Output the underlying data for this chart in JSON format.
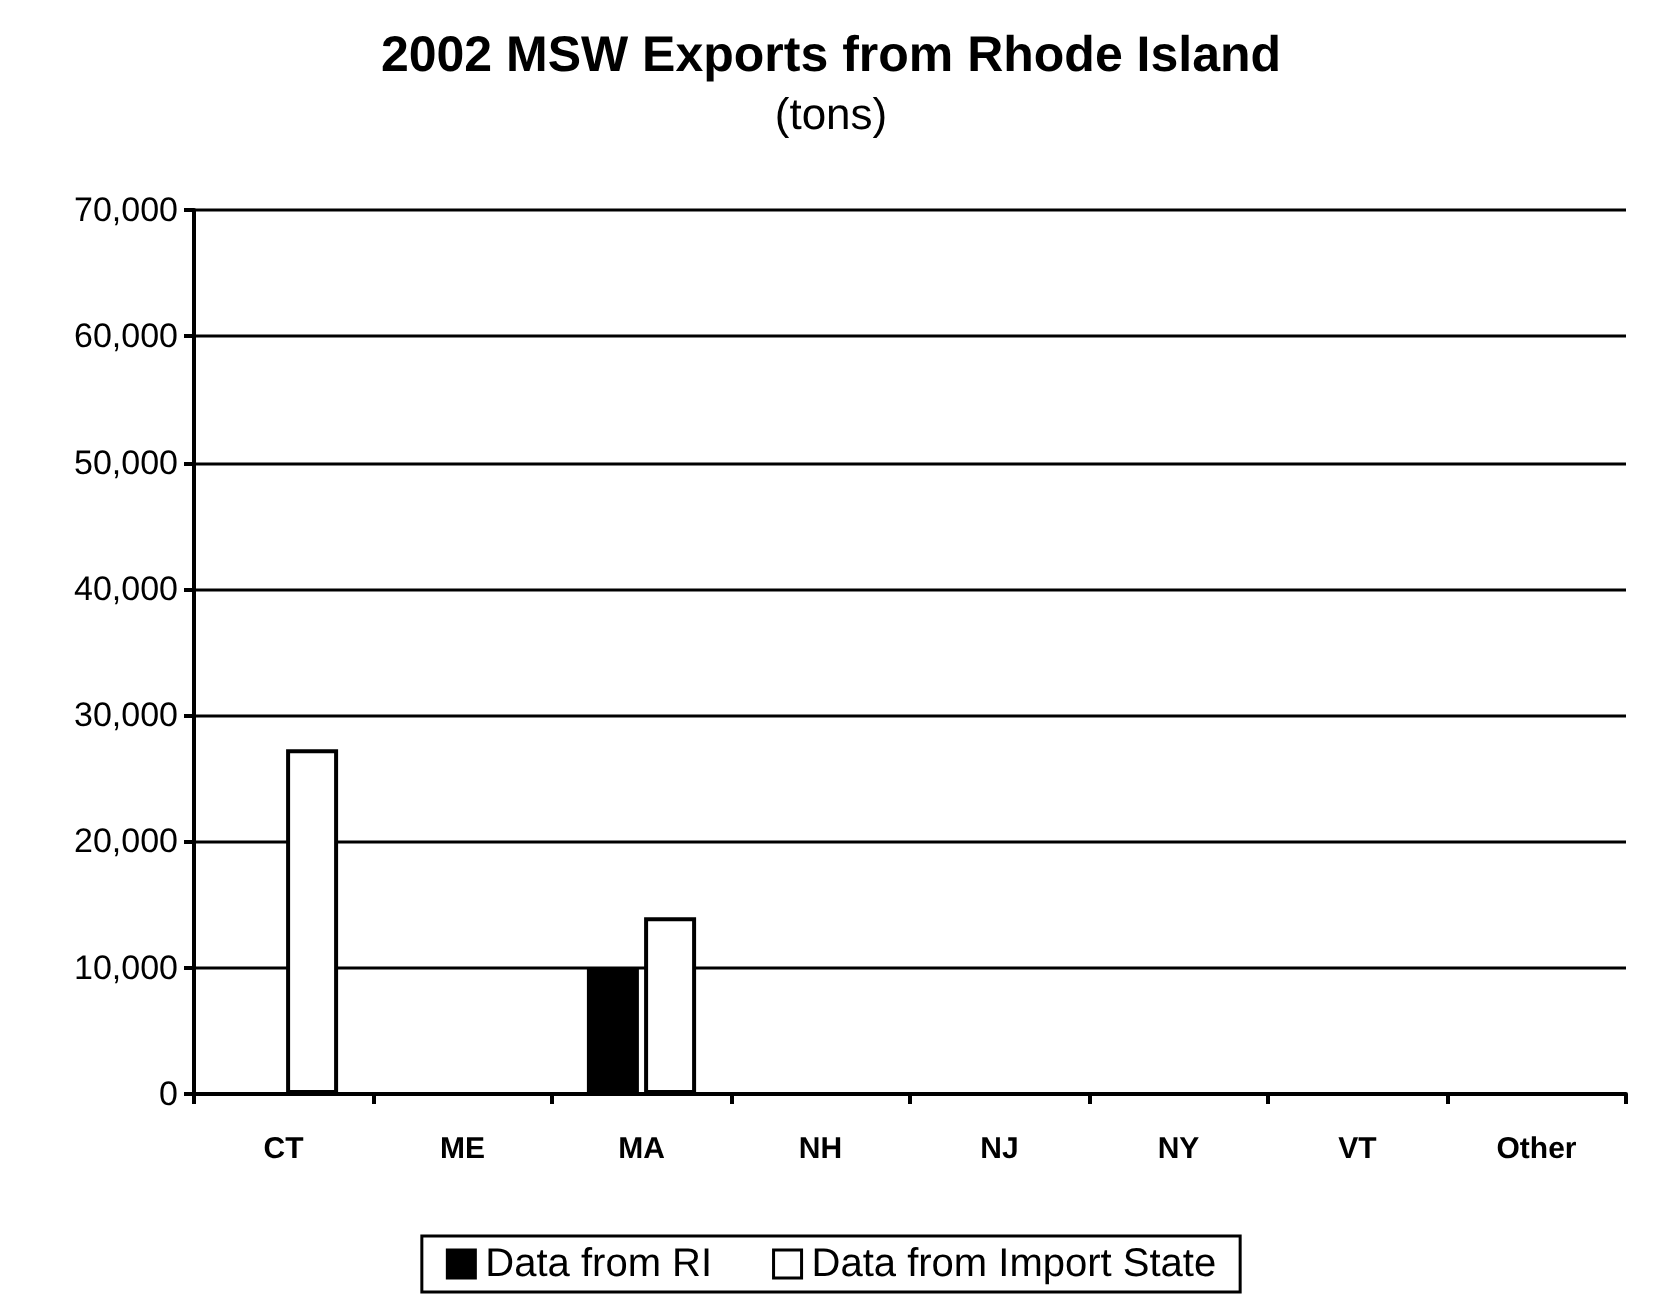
{
  "chart_data": {
    "type": "bar",
    "title": "2002 MSW Exports from Rhode Island",
    "subtitle": "(tons)",
    "categories": [
      "CT",
      "ME",
      "MA",
      "NH",
      "NJ",
      "NY",
      "VT",
      "Other"
    ],
    "series": [
      {
        "name": "Data from RI",
        "color": "#000000",
        "values": [
          null,
          null,
          10000,
          null,
          null,
          null,
          null,
          null
        ]
      },
      {
        "name": "Data from Import State",
        "color": "#ffffff",
        "values": [
          27300,
          null,
          14000,
          null,
          null,
          null,
          null,
          null
        ]
      }
    ],
    "ylim": [
      0,
      70000
    ],
    "yticks": [
      0,
      {
        "value": 10000,
        "label": "10,000"
      },
      {
        "value": 20000,
        "label": "20,000"
      },
      {
        "value": 30000,
        "label": "30,000"
      },
      {
        "value": 40000,
        "label": "40,000"
      },
      {
        "value": 50000,
        "label": "50,000"
      },
      {
        "value": 60000,
        "label": "60,000"
      },
      {
        "value": 70000,
        "label": "70,000"
      }
    ],
    "grid": "y",
    "legend": "bottom"
  }
}
